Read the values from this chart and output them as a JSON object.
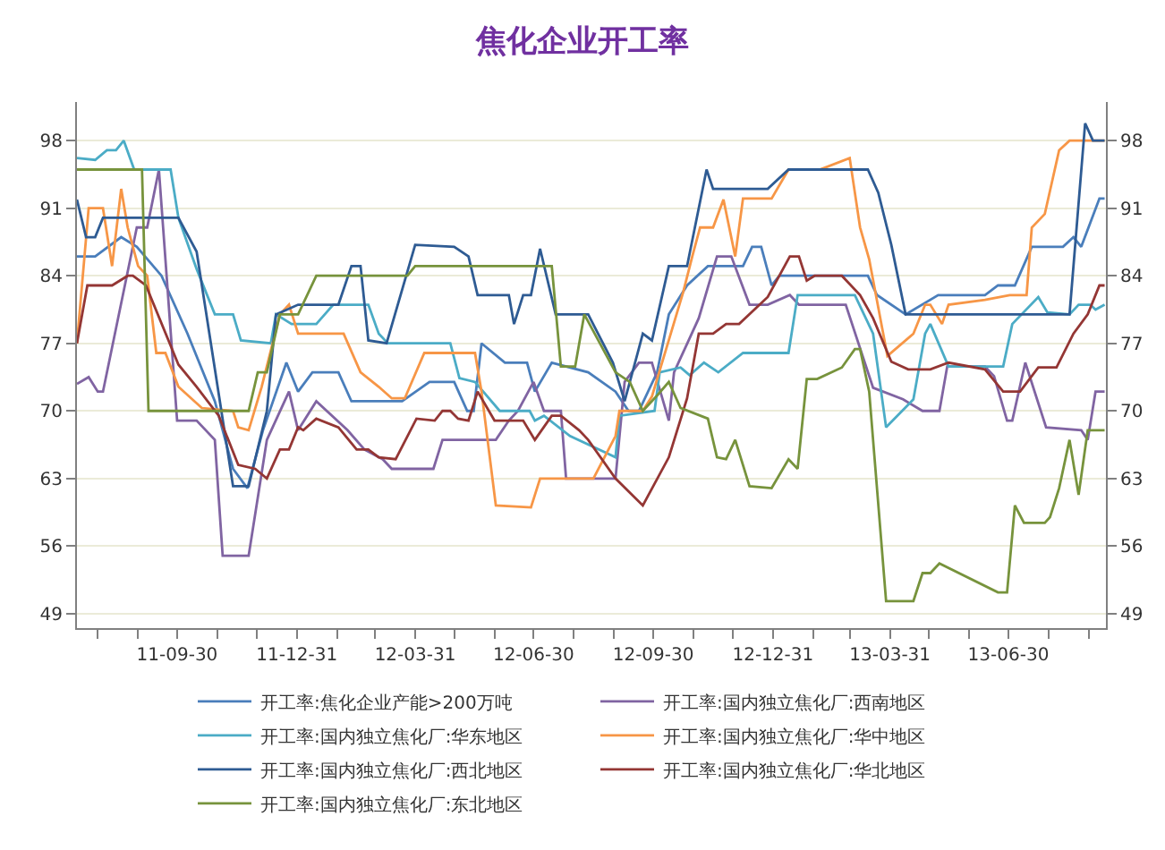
{
  "chart_data": {
    "type": "line",
    "title": "焦化企业开工率",
    "series": [
      {
        "name": "开工率:焦化企业产能>200万吨",
        "color": "#4a7ebb",
        "x": [
          "2011-07-15",
          "2011-07-29",
          "2011-08-18",
          "2011-08-30",
          "2011-09-18",
          "2011-10-08",
          "2011-10-29",
          "2011-11-12",
          "2011-11-23",
          "2011-12-05",
          "2011-12-23",
          "2012-01-01",
          "2012-01-12",
          "2012-02-01",
          "2012-02-11",
          "2012-03-21",
          "2012-04-11",
          "2012-04-30",
          "2012-05-10",
          "2012-05-15",
          "2012-05-21",
          "2012-06-08",
          "2012-06-25",
          "2012-07-01",
          "2012-07-14",
          "2012-08-11",
          "2012-09-01",
          "2012-09-11",
          "2012-09-19",
          "2012-10-03",
          "2012-10-12",
          "2012-10-26",
          "2012-11-11",
          "2012-12-08",
          "2012-12-15",
          "2012-12-22",
          "2012-12-30",
          "2013-01-05",
          "2013-02-25",
          "2013-03-14",
          "2013-03-21",
          "2013-04-12",
          "2013-05-07",
          "2013-06-12",
          "2013-06-22",
          "2013-07-05",
          "2013-07-18",
          "2013-08-11",
          "2013-08-19",
          "2013-08-25",
          "2013-09-08",
          "2013-09-12"
        ],
        "values": [
          86,
          86,
          88,
          87,
          84,
          78,
          71,
          64,
          62,
          68,
          75,
          72,
          74,
          74,
          71,
          71,
          73,
          73,
          70,
          70,
          77,
          75,
          75,
          72,
          75,
          74,
          72,
          70,
          70,
          74,
          80,
          83,
          85,
          85,
          87,
          87,
          83,
          84,
          84,
          84,
          82,
          80,
          82,
          82,
          83,
          83,
          87,
          87,
          88,
          87,
          92,
          92
        ]
      },
      {
        "name": "开工率:国内独立焦化厂:西南地区",
        "color": "#8064a2",
        "x": [
          "2011-07-15",
          "2011-07-24",
          "2011-07-31",
          "2011-08-04",
          "2011-08-30",
          "2011-09-07",
          "2011-09-16",
          "2011-09-30",
          "2011-10-15",
          "2011-10-29",
          "2011-11-04",
          "2011-11-24",
          "2011-12-08",
          "2011-12-25",
          "2012-01-01",
          "2012-01-15",
          "2012-02-08",
          "2012-02-21",
          "2012-03-06",
          "2012-03-13",
          "2012-04-14",
          "2012-04-21",
          "2012-06-01",
          "2012-06-11",
          "2012-06-18",
          "2012-06-30",
          "2012-07-08",
          "2012-07-21",
          "2012-07-25",
          "2012-09-01",
          "2012-09-08",
          "2012-09-19",
          "2012-09-29",
          "2012-10-12",
          "2012-10-16",
          "2012-11-04",
          "2012-11-18",
          "2012-11-29",
          "2012-12-13",
          "2012-12-27",
          "2013-01-13",
          "2013-01-20",
          "2013-02-25",
          "2013-03-18",
          "2013-04-10",
          "2013-04-25",
          "2013-05-08",
          "2013-05-14",
          "2013-06-12",
          "2013-06-19",
          "2013-06-29",
          "2013-07-03",
          "2013-07-13",
          "2013-07-29",
          "2013-08-25",
          "2013-08-30",
          "2013-09-05",
          "2013-09-12"
        ],
        "values": [
          72.8,
          73.5,
          72,
          72,
          89,
          89,
          95,
          69,
          69,
          67,
          55,
          55,
          67,
          72,
          68,
          71,
          68,
          66,
          65,
          64,
          64,
          67,
          67,
          69,
          70,
          73,
          70,
          70,
          63,
          63,
          73,
          75,
          75,
          69,
          74,
          79.6,
          86,
          86,
          81,
          81,
          82,
          81,
          81,
          72.4,
          71.2,
          70,
          70,
          74.6,
          74.6,
          73.6,
          69,
          69,
          75,
          68.3,
          68,
          67,
          72,
          72
        ]
      },
      {
        "name": "开工率:国内独立焦化厂:华东地区",
        "color": "#4bacc6",
        "x": [
          "2011-07-15",
          "2011-07-29",
          "2011-08-07",
          "2011-08-14",
          "2011-08-20",
          "2011-08-28",
          "2011-09-25",
          "2011-10-01",
          "2011-10-15",
          "2011-10-29",
          "2011-11-12",
          "2011-11-18",
          "2011-12-11",
          "2011-12-15",
          "2011-12-27",
          "2012-01-15",
          "2012-01-28",
          "2012-02-24",
          "2012-03-03",
          "2012-03-10",
          "2012-04-27",
          "2012-05-04",
          "2012-05-16",
          "2012-06-04",
          "2012-06-27",
          "2012-07-01",
          "2012-07-08",
          "2012-07-28",
          "2012-09-01",
          "2012-09-04",
          "2012-10-01",
          "2012-10-05",
          "2012-10-21",
          "2012-10-28",
          "2012-11-08",
          "2012-11-19",
          "2012-12-08",
          "2013-01-12",
          "2013-01-19",
          "2013-03-04",
          "2013-03-18",
          "2013-03-28",
          "2013-04-18",
          "2013-04-27",
          "2013-05-01",
          "2013-05-15",
          "2013-06-26",
          "2013-07-03",
          "2013-07-23",
          "2013-07-30",
          "2013-08-16",
          "2013-08-23",
          "2013-09-01",
          "2013-09-05",
          "2013-09-12"
        ],
        "values": [
          96.2,
          96,
          97,
          97,
          98,
          95,
          95,
          90,
          84.7,
          80,
          80,
          77.3,
          77,
          80,
          79,
          79,
          81,
          81,
          78,
          77,
          77,
          73.4,
          73,
          70,
          70,
          69,
          69.5,
          67.4,
          65.2,
          69.5,
          70,
          74,
          74.5,
          73.7,
          75,
          74,
          76,
          76,
          82,
          82,
          78,
          68.3,
          71.2,
          78,
          79,
          74.6,
          74.6,
          79,
          81.8,
          80.2,
          80,
          81,
          81,
          80.5,
          81
        ]
      },
      {
        "name": "开工率:国内独立焦化厂:华中地区",
        "color": "#f79646",
        "x": [
          "2011-07-15",
          "2011-07-24",
          "2011-08-04",
          "2011-08-11",
          "2011-08-18",
          "2011-08-23",
          "2011-08-31",
          "2011-09-07",
          "2011-09-14",
          "2011-09-21",
          "2011-10-01",
          "2011-10-19",
          "2011-11-12",
          "2011-11-16",
          "2011-11-24",
          "2011-12-04",
          "2011-12-18",
          "2011-12-25",
          "2012-01-01",
          "2012-02-05",
          "2012-02-18",
          "2012-03-03",
          "2012-03-13",
          "2012-03-23",
          "2012-04-07",
          "2012-05-16",
          "2012-05-21",
          "2012-06-01",
          "2012-06-28",
          "2012-07-05",
          "2012-08-15",
          "2012-09-01",
          "2012-09-04",
          "2012-09-22",
          "2012-09-29",
          "2012-10-23",
          "2012-10-30",
          "2012-11-05",
          "2012-11-15",
          "2012-11-23",
          "2012-12-02",
          "2012-12-08",
          "2012-12-30",
          "2013-01-12",
          "2013-02-05",
          "2013-02-28",
          "2013-03-08",
          "2013-03-15",
          "2013-03-29",
          "2013-04-18",
          "2013-04-27",
          "2013-05-01",
          "2013-05-10",
          "2013-05-15",
          "2013-06-12",
          "2013-07-01",
          "2013-07-14",
          "2013-07-18",
          "2013-07-28",
          "2013-08-08",
          "2013-08-16",
          "2013-09-12"
        ],
        "values": [
          77,
          91,
          91,
          85,
          93,
          89,
          85,
          84,
          76,
          76,
          72.5,
          70.3,
          70,
          68.3,
          68,
          72.5,
          80,
          81,
          78,
          78,
          74,
          72.5,
          71.3,
          71.3,
          76,
          76,
          72,
          60.2,
          60,
          63,
          63,
          67.4,
          70,
          70,
          71.5,
          82.3,
          86,
          89,
          89,
          91.9,
          86,
          92,
          92,
          95,
          95,
          96.2,
          89,
          85.7,
          75.7,
          78,
          81,
          81,
          79,
          81,
          81.5,
          82,
          82,
          89,
          90.4,
          97,
          98,
          98
        ]
      },
      {
        "name": "开工率:国内独立焦化厂:西北地区",
        "color": "#2e5b93",
        "x": [
          "2011-07-15",
          "2011-07-22",
          "2011-07-29",
          "2011-08-04",
          "2011-10-01",
          "2011-10-15",
          "2011-11-12",
          "2011-11-24",
          "2011-12-08",
          "2011-12-15",
          "2012-01-01",
          "2012-02-01",
          "2012-02-11",
          "2012-02-18",
          "2012-02-24",
          "2012-03-09",
          "2012-03-31",
          "2012-04-30",
          "2012-05-11",
          "2012-05-18",
          "2012-06-11",
          "2012-06-15",
          "2012-06-22",
          "2012-06-28",
          "2012-07-05",
          "2012-07-17",
          "2012-08-11",
          "2012-08-30",
          "2012-09-08",
          "2012-09-18",
          "2012-09-22",
          "2012-09-29",
          "2012-10-12",
          "2012-10-26",
          "2012-11-10",
          "2012-11-15",
          "2012-12-27",
          "2013-01-12",
          "2013-03-14",
          "2013-03-22",
          "2013-04-01",
          "2013-04-12",
          "2013-08-16",
          "2013-08-28",
          "2013-09-03",
          "2013-09-12"
        ],
        "values": [
          91.9,
          88,
          88,
          90,
          90,
          86.5,
          62.2,
          62.2,
          70,
          80,
          81,
          81,
          85,
          85,
          77.3,
          77,
          87.2,
          87,
          86,
          82,
          82,
          79,
          82,
          82,
          86.8,
          80,
          80,
          75,
          71,
          76,
          78,
          77.3,
          85,
          85,
          95,
          93,
          93,
          95,
          95,
          92.6,
          87.2,
          80,
          80,
          99.8,
          98,
          98
        ]
      },
      {
        "name": "开工率:国内独立焦化厂:华北地区",
        "color": "#943634",
        "x": [
          "2011-07-15",
          "2011-07-23",
          "2011-08-11",
          "2011-08-23",
          "2011-08-27",
          "2011-09-06",
          "2011-10-01",
          "2011-10-15",
          "2011-11-01",
          "2011-11-16",
          "2011-11-29",
          "2011-12-08",
          "2011-12-18",
          "2011-12-25",
          "2012-01-01",
          "2012-01-05",
          "2012-01-15",
          "2012-02-01",
          "2012-02-15",
          "2012-02-24",
          "2012-03-03",
          "2012-03-16",
          "2012-04-01",
          "2012-04-15",
          "2012-04-21",
          "2012-04-27",
          "2012-05-03",
          "2012-05-11",
          "2012-05-18",
          "2012-05-31",
          "2012-06-22",
          "2012-07-01",
          "2012-07-14",
          "2012-07-21",
          "2012-08-04",
          "2012-08-11",
          "2012-09-01",
          "2012-09-22",
          "2012-10-12",
          "2012-10-26",
          "2012-11-04",
          "2012-11-15",
          "2012-11-25",
          "2012-12-05",
          "2012-12-27",
          "2013-01-13",
          "2013-01-20",
          "2013-01-26",
          "2013-02-01",
          "2013-02-22",
          "2013-03-08",
          "2013-03-18",
          "2013-04-01",
          "2013-04-14",
          "2013-05-01",
          "2013-05-15",
          "2013-06-12",
          "2013-06-26",
          "2013-07-09",
          "2013-07-23",
          "2013-08-06",
          "2013-08-19",
          "2013-08-30",
          "2013-09-08",
          "2013-09-12"
        ],
        "values": [
          77,
          83,
          83,
          84,
          84,
          83,
          74.8,
          72.5,
          69.5,
          64.4,
          64,
          63,
          66,
          66,
          68.3,
          68,
          69.2,
          68.3,
          66,
          66,
          65.2,
          65,
          69.2,
          69,
          70,
          70,
          69.2,
          69,
          72,
          69,
          69,
          67,
          69.5,
          69.5,
          68,
          67,
          63,
          60.2,
          65.2,
          71.3,
          78,
          78,
          79,
          79,
          81.8,
          86,
          86,
          83.5,
          84,
          84,
          82,
          79.6,
          75.1,
          74.3,
          74.3,
          75,
          74.3,
          72,
          72,
          74.5,
          74.5,
          78,
          80,
          83,
          83
        ]
      },
      {
        "name": "开工率:国内独立焦化厂:东北地区",
        "color": "#77933c",
        "x": [
          "2011-07-15",
          "2011-09-03",
          "2011-09-08",
          "2011-11-24",
          "2011-12-01",
          "2011-12-08",
          "2011-12-18",
          "2012-01-01",
          "2012-01-15",
          "2012-03-25",
          "2012-03-31",
          "2012-07-14",
          "2012-07-21",
          "2012-08-01",
          "2012-08-08",
          "2012-09-01",
          "2012-09-12",
          "2012-09-22",
          "2012-10-03",
          "2012-10-12",
          "2012-10-21",
          "2012-11-11",
          "2012-11-18",
          "2012-11-25",
          "2012-12-02",
          "2012-12-13",
          "2012-12-30",
          "2013-01-12",
          "2013-01-19",
          "2013-01-26",
          "2013-02-03",
          "2013-02-22",
          "2013-03-04",
          "2013-03-08",
          "2013-03-15",
          "2013-03-28",
          "2013-04-18",
          "2013-04-25",
          "2013-05-01",
          "2013-05-08",
          "2013-06-22",
          "2013-06-29",
          "2013-07-05",
          "2013-07-12",
          "2013-07-28",
          "2013-08-01",
          "2013-08-08",
          "2013-08-16",
          "2013-08-23",
          "2013-08-30",
          "2013-09-12"
        ],
        "values": [
          95,
          95,
          70,
          70,
          74,
          74,
          80,
          80,
          84,
          84,
          85,
          85,
          74.6,
          74.6,
          80,
          74,
          73,
          70,
          71.6,
          73,
          70.3,
          69.2,
          65.2,
          65,
          67,
          62.2,
          62,
          65,
          64,
          73.3,
          73.3,
          74.5,
          76.4,
          76.4,
          72,
          50.3,
          50.3,
          53.2,
          53.2,
          54.2,
          51.2,
          51.2,
          60.2,
          58.4,
          58.4,
          59,
          62,
          67,
          61.3,
          68,
          68
        ]
      }
    ],
    "xlim": [
      "2011-07-15",
      "2013-09-13"
    ],
    "xticks": [
      {
        "value": "2011-07-31",
        "label": null
      },
      {
        "value": "2011-08-31",
        "label": null
      },
      {
        "value": "2011-09-30",
        "label": "11-09-30"
      },
      {
        "value": "2011-10-31",
        "label": null
      },
      {
        "value": "2011-11-30",
        "label": null
      },
      {
        "value": "2011-12-31",
        "label": "11-12-31"
      },
      {
        "value": "2012-01-31",
        "label": null
      },
      {
        "value": "2012-02-29",
        "label": null
      },
      {
        "value": "2012-03-31",
        "label": "12-03-31"
      },
      {
        "value": "2012-04-30",
        "label": null
      },
      {
        "value": "2012-05-31",
        "label": null
      },
      {
        "value": "2012-06-30",
        "label": "12-06-30"
      },
      {
        "value": "2012-07-31",
        "label": null
      },
      {
        "value": "2012-08-31",
        "label": null
      },
      {
        "value": "2012-09-30",
        "label": "12-09-30"
      },
      {
        "value": "2012-10-31",
        "label": null
      },
      {
        "value": "2012-11-30",
        "label": null
      },
      {
        "value": "2012-12-31",
        "label": "12-12-31"
      },
      {
        "value": "2013-01-31",
        "label": null
      },
      {
        "value": "2013-02-28",
        "label": null
      },
      {
        "value": "2013-03-31",
        "label": "13-03-31"
      },
      {
        "value": "2013-04-30",
        "label": null
      },
      {
        "value": "2013-05-31",
        "label": null
      },
      {
        "value": "2013-06-30",
        "label": "13-06-30"
      },
      {
        "value": "2013-07-31",
        "label": null
      },
      {
        "value": "2013-08-31",
        "label": null
      }
    ],
    "ylim": [
      47.5,
      102
    ],
    "yticks": [
      49,
      56,
      63,
      70,
      77,
      84,
      91,
      98
    ],
    "y2lim": [
      47.5,
      102
    ],
    "y2ticks": [
      49,
      56,
      63,
      70,
      77,
      84,
      91,
      98
    ],
    "grid": "y",
    "legend": "bottom",
    "marker": "none",
    "line_style": "solid"
  }
}
